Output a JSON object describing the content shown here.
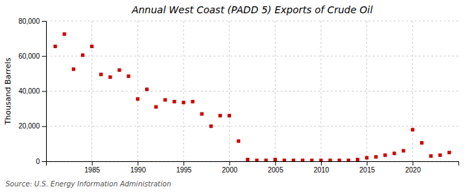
{
  "chart_data": {
    "type": "scatter",
    "title": "Annual West Coast (PADD 5) Exports of Crude Oil",
    "y_label": "Thousand Barrels",
    "annotations": [
      "Source: U.S. Energy Information Administration"
    ],
    "x": [
      1981,
      1982,
      1983,
      1984,
      1985,
      1986,
      1987,
      1988,
      1989,
      1990,
      1991,
      1992,
      1993,
      1994,
      1995,
      1996,
      1997,
      1998,
      1999,
      2000,
      2001,
      2002,
      2003,
      2004,
      2005,
      2006,
      2007,
      2008,
      2009,
      2010,
      2011,
      2012,
      2013,
      2014,
      2015,
      2016,
      2017,
      2018,
      2019,
      2020,
      2021,
      2022,
      2023,
      2024
    ],
    "values": [
      65500,
      72500,
      52500,
      60500,
      65500,
      49500,
      48000,
      52000,
      48500,
      35500,
      41000,
      31000,
      35000,
      34000,
      33500,
      34000,
      27000,
      20000,
      26000,
      26000,
      11500,
      1000,
      500,
      500,
      1000,
      500,
      500,
      500,
      500,
      500,
      500,
      500,
      500,
      1000,
      2000,
      2500,
      3500,
      4500,
      6000,
      18000,
      10500,
      3000,
      3500,
      5000
    ],
    "color": "#cc0000",
    "marker": "square",
    "xlim": [
      1980,
      2025
    ],
    "xticks": [
      1985,
      1990,
      1995,
      2000,
      2005,
      2010,
      2015,
      2020
    ],
    "ylim": [
      0,
      80000
    ],
    "yticks": [
      0,
      {
        "value": 20000,
        "label": "20,000"
      },
      {
        "value": 40000,
        "label": "40,000"
      },
      {
        "value": 60000,
        "label": "60,000"
      },
      {
        "value": 80000,
        "label": "80,000"
      }
    ],
    "grid": true
  }
}
